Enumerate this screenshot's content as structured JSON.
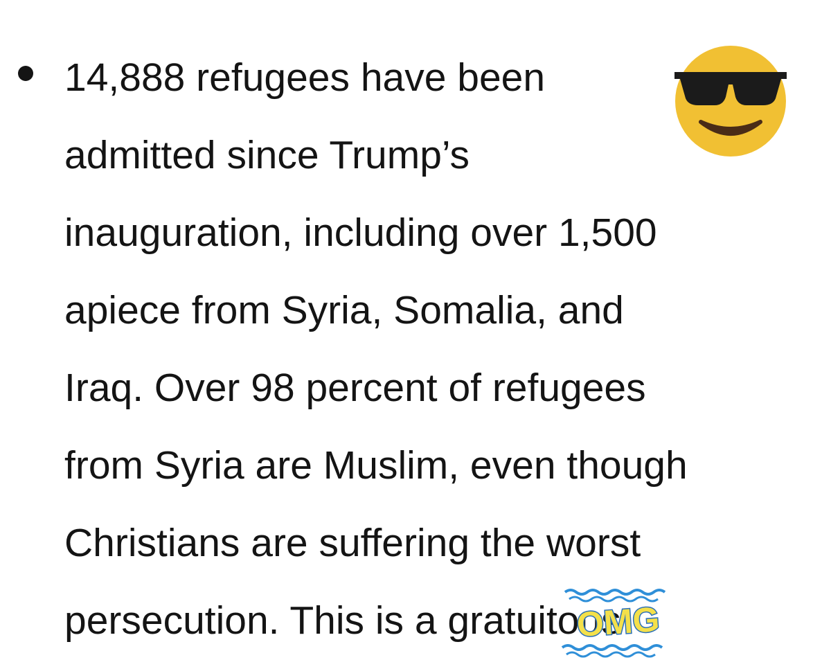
{
  "paragraph": {
    "lines": [
      "14,888 refugees have been",
      "admitted since Trump’s",
      "inauguration, including over 1,500",
      "apiece from Syria, Somalia, and",
      "Iraq. Over 98 percent of refugees",
      "from Syria are Muslim, even though",
      "Christians are suffering the worst",
      "persecution. This is a gratuitous"
    ]
  },
  "sticker": {
    "text": "OMG"
  }
}
